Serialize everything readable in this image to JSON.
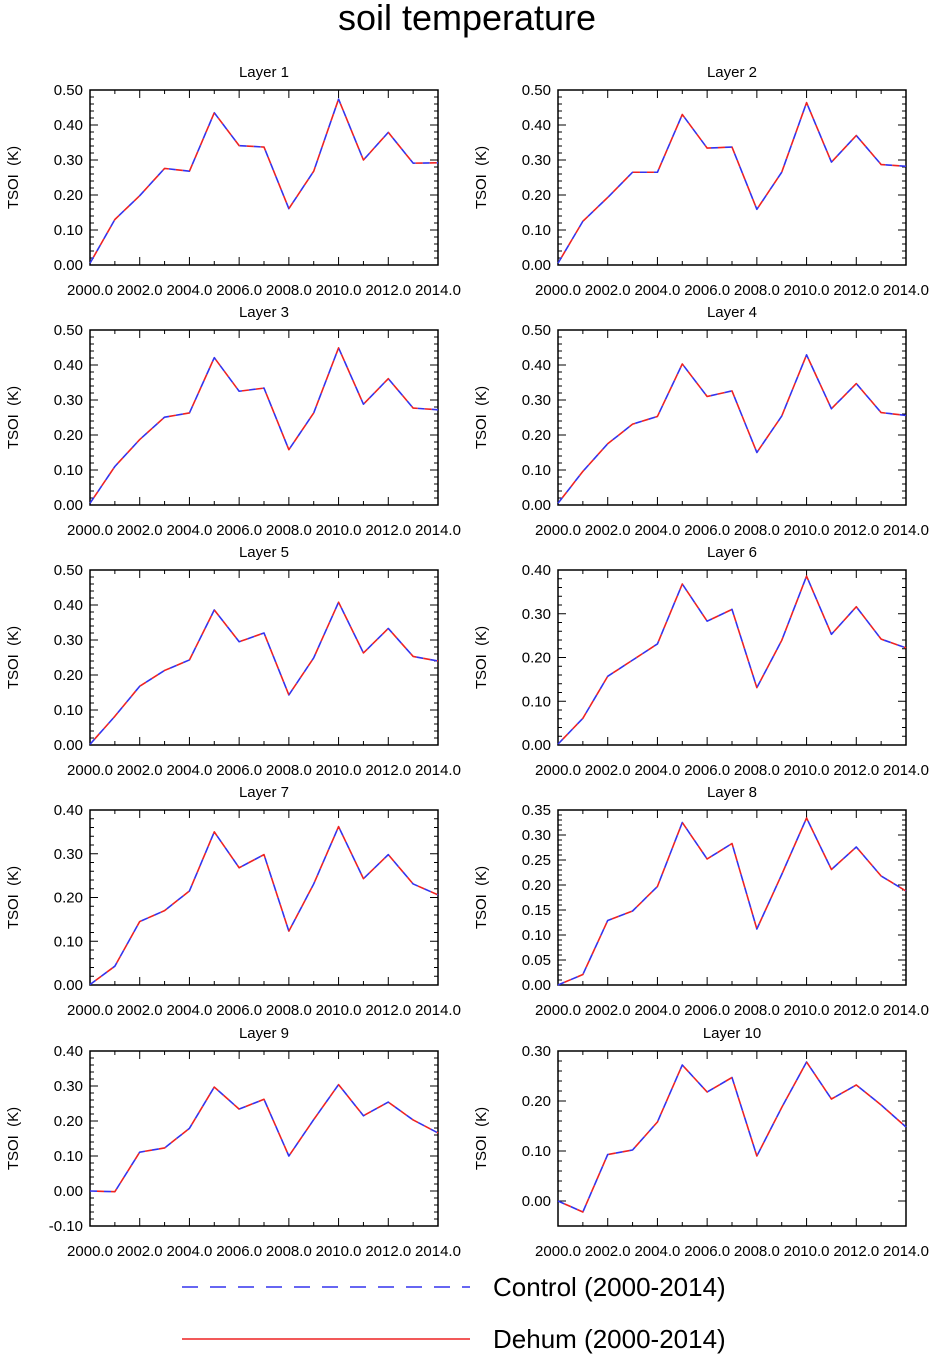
{
  "title": "soil temperature",
  "colors": {
    "control": "#3333ee",
    "dehum": "#ee2222",
    "axis": "#000000"
  },
  "legend": {
    "control_label": "Control (2000-2014)",
    "dehum_label": "Dehum (2000-2014)"
  },
  "chart_data": [
    {
      "type": "line",
      "title": "Layer 1",
      "ylabel": "TSOI  (K)",
      "x": [
        2000,
        2001,
        2002,
        2003,
        2004,
        2005,
        2006,
        2007,
        2008,
        2009,
        2010,
        2011,
        2012,
        2013,
        2014
      ],
      "xlim": [
        2000,
        2014
      ],
      "ylim": [
        0.0,
        0.5
      ],
      "xticks": [
        2000,
        2002,
        2004,
        2006,
        2008,
        2010,
        2012,
        2014
      ],
      "xtick_labels": [
        "2000.0",
        "2002.0",
        "2004.0",
        "2006.0",
        "2008.0",
        "2010.0",
        "2012.0",
        "2014.0"
      ],
      "yticks": [
        0,
        0.1,
        0.2,
        0.3,
        0.4,
        0.5
      ],
      "ytick_labels": [
        "0.00",
        "0.10",
        "0.20",
        "0.30",
        "0.40",
        "0.50"
      ],
      "series": [
        {
          "name": "Control (2000-2014)",
          "values": [
            0.005,
            0.13,
            0.198,
            0.276,
            0.268,
            0.435,
            0.341,
            0.337,
            0.161,
            0.268,
            0.474,
            0.3,
            0.379,
            0.291,
            0.292
          ]
        },
        {
          "name": "Dehum (2000-2014)",
          "values": [
            0.005,
            0.13,
            0.198,
            0.276,
            0.268,
            0.435,
            0.341,
            0.337,
            0.161,
            0.268,
            0.474,
            0.3,
            0.379,
            0.291,
            0.292
          ]
        }
      ]
    },
    {
      "type": "line",
      "title": "Layer 2",
      "ylabel": "TSOI  (K)",
      "x": [
        2000,
        2001,
        2002,
        2003,
        2004,
        2005,
        2006,
        2007,
        2008,
        2009,
        2010,
        2011,
        2012,
        2013,
        2014
      ],
      "xlim": [
        2000,
        2014
      ],
      "ylim": [
        0.0,
        0.5
      ],
      "xticks": [
        2000,
        2002,
        2004,
        2006,
        2008,
        2010,
        2012,
        2014
      ],
      "xtick_labels": [
        "2000.0",
        "2002.0",
        "2004.0",
        "2006.0",
        "2008.0",
        "2010.0",
        "2012.0",
        "2014.0"
      ],
      "yticks": [
        0,
        0.1,
        0.2,
        0.3,
        0.4,
        0.5
      ],
      "ytick_labels": [
        "0.00",
        "0.10",
        "0.20",
        "0.30",
        "0.40",
        "0.50"
      ],
      "series": [
        {
          "name": "Control (2000-2014)",
          "values": [
            0.005,
            0.125,
            0.193,
            0.265,
            0.265,
            0.43,
            0.334,
            0.337,
            0.159,
            0.265,
            0.464,
            0.294,
            0.37,
            0.287,
            0.282
          ]
        },
        {
          "name": "Dehum (2000-2014)",
          "values": [
            0.005,
            0.125,
            0.193,
            0.265,
            0.265,
            0.43,
            0.334,
            0.337,
            0.159,
            0.265,
            0.464,
            0.294,
            0.37,
            0.287,
            0.282
          ]
        }
      ]
    },
    {
      "type": "line",
      "title": "Layer 3",
      "ylabel": "TSOI  (K)",
      "x": [
        2000,
        2001,
        2002,
        2003,
        2004,
        2005,
        2006,
        2007,
        2008,
        2009,
        2010,
        2011,
        2012,
        2013,
        2014
      ],
      "xlim": [
        2000,
        2014
      ],
      "ylim": [
        0.0,
        0.5
      ],
      "xticks": [
        2000,
        2002,
        2004,
        2006,
        2008,
        2010,
        2012,
        2014
      ],
      "xtick_labels": [
        "2000.0",
        "2002.0",
        "2004.0",
        "2006.0",
        "2008.0",
        "2010.0",
        "2012.0",
        "2014.0"
      ],
      "yticks": [
        0,
        0.1,
        0.2,
        0.3,
        0.4,
        0.5
      ],
      "ytick_labels": [
        "0.00",
        "0.10",
        "0.20",
        "0.30",
        "0.40",
        "0.50"
      ],
      "series": [
        {
          "name": "Control (2000-2014)",
          "values": [
            0.005,
            0.11,
            0.187,
            0.251,
            0.263,
            0.421,
            0.325,
            0.334,
            0.158,
            0.263,
            0.449,
            0.288,
            0.361,
            0.277,
            0.272
          ]
        },
        {
          "name": "Dehum (2000-2014)",
          "values": [
            0.005,
            0.11,
            0.187,
            0.251,
            0.263,
            0.421,
            0.325,
            0.334,
            0.158,
            0.263,
            0.449,
            0.288,
            0.361,
            0.277,
            0.272
          ]
        }
      ]
    },
    {
      "type": "line",
      "title": "Layer 4",
      "ylabel": "TSOI  (K)",
      "x": [
        2000,
        2001,
        2002,
        2003,
        2004,
        2005,
        2006,
        2007,
        2008,
        2009,
        2010,
        2011,
        2012,
        2013,
        2014
      ],
      "xlim": [
        2000,
        2014
      ],
      "ylim": [
        0.0,
        0.5
      ],
      "xticks": [
        2000,
        2002,
        2004,
        2006,
        2008,
        2010,
        2012,
        2014
      ],
      "xtick_labels": [
        "2000.0",
        "2002.0",
        "2004.0",
        "2006.0",
        "2008.0",
        "2010.0",
        "2012.0",
        "2014.0"
      ],
      "yticks": [
        0,
        0.1,
        0.2,
        0.3,
        0.4,
        0.5
      ],
      "ytick_labels": [
        "0.00",
        "0.10",
        "0.20",
        "0.30",
        "0.40",
        "0.50"
      ],
      "series": [
        {
          "name": "Control (2000-2014)",
          "values": [
            0.005,
            0.096,
            0.175,
            0.231,
            0.253,
            0.403,
            0.31,
            0.326,
            0.15,
            0.254,
            0.429,
            0.275,
            0.347,
            0.264,
            0.256
          ]
        },
        {
          "name": "Dehum (2000-2014)",
          "values": [
            0.005,
            0.096,
            0.175,
            0.231,
            0.253,
            0.403,
            0.31,
            0.326,
            0.15,
            0.254,
            0.429,
            0.275,
            0.347,
            0.264,
            0.256
          ]
        }
      ]
    },
    {
      "type": "line",
      "title": "Layer 5",
      "ylabel": "TSOI  (K)",
      "x": [
        2000,
        2001,
        2002,
        2003,
        2004,
        2005,
        2006,
        2007,
        2008,
        2009,
        2010,
        2011,
        2012,
        2013,
        2014
      ],
      "xlim": [
        2000,
        2014
      ],
      "ylim": [
        0.0,
        0.5
      ],
      "xticks": [
        2000,
        2002,
        2004,
        2006,
        2008,
        2010,
        2012,
        2014
      ],
      "xtick_labels": [
        "2000.0",
        "2002.0",
        "2004.0",
        "2006.0",
        "2008.0",
        "2010.0",
        "2012.0",
        "2014.0"
      ],
      "yticks": [
        0,
        0.1,
        0.2,
        0.3,
        0.4,
        0.5
      ],
      "ytick_labels": [
        "0.00",
        "0.10",
        "0.20",
        "0.30",
        "0.40",
        "0.50"
      ],
      "series": [
        {
          "name": "Control (2000-2014)",
          "values": [
            0.002,
            0.082,
            0.168,
            0.213,
            0.243,
            0.386,
            0.295,
            0.32,
            0.143,
            0.249,
            0.408,
            0.263,
            0.333,
            0.253,
            0.24
          ]
        },
        {
          "name": "Dehum (2000-2014)",
          "values": [
            0.002,
            0.082,
            0.168,
            0.213,
            0.243,
            0.386,
            0.295,
            0.32,
            0.143,
            0.249,
            0.408,
            0.263,
            0.333,
            0.253,
            0.24
          ]
        }
      ]
    },
    {
      "type": "line",
      "title": "Layer 6",
      "ylabel": "TSOI  (K)",
      "x": [
        2000,
        2001,
        2002,
        2003,
        2004,
        2005,
        2006,
        2007,
        2008,
        2009,
        2010,
        2011,
        2012,
        2013,
        2014
      ],
      "xlim": [
        2000,
        2014
      ],
      "ylim": [
        0.0,
        0.4
      ],
      "xticks": [
        2000,
        2002,
        2004,
        2006,
        2008,
        2010,
        2012,
        2014
      ],
      "xtick_labels": [
        "2000.0",
        "2002.0",
        "2004.0",
        "2006.0",
        "2008.0",
        "2010.0",
        "2012.0",
        "2014.0"
      ],
      "yticks": [
        0,
        0.1,
        0.2,
        0.3,
        0.4
      ],
      "ytick_labels": [
        "0.00",
        "0.10",
        "0.20",
        "0.30",
        "0.40"
      ],
      "series": [
        {
          "name": "Control (2000-2014)",
          "values": [
            0.002,
            0.061,
            0.157,
            0.194,
            0.231,
            0.368,
            0.283,
            0.31,
            0.131,
            0.239,
            0.386,
            0.253,
            0.316,
            0.242,
            0.222
          ]
        },
        {
          "name": "Dehum (2000-2014)",
          "values": [
            0.002,
            0.061,
            0.157,
            0.194,
            0.231,
            0.368,
            0.283,
            0.31,
            0.131,
            0.239,
            0.386,
            0.253,
            0.316,
            0.242,
            0.222
          ]
        }
      ]
    },
    {
      "type": "line",
      "title": "Layer 7",
      "ylabel": "TSOI  (K)",
      "x": [
        2000,
        2001,
        2002,
        2003,
        2004,
        2005,
        2006,
        2007,
        2008,
        2009,
        2010,
        2011,
        2012,
        2013,
        2014
      ],
      "xlim": [
        2000,
        2014
      ],
      "ylim": [
        0.0,
        0.4
      ],
      "xticks": [
        2000,
        2002,
        2004,
        2006,
        2008,
        2010,
        2012,
        2014
      ],
      "xtick_labels": [
        "2000.0",
        "2002.0",
        "2004.0",
        "2006.0",
        "2008.0",
        "2010.0",
        "2012.0",
        "2014.0"
      ],
      "yticks": [
        0,
        0.1,
        0.2,
        0.3,
        0.4
      ],
      "ytick_labels": [
        "0.00",
        "0.10",
        "0.20",
        "0.30",
        "0.40"
      ],
      "series": [
        {
          "name": "Control (2000-2014)",
          "values": [
            0.001,
            0.043,
            0.145,
            0.17,
            0.215,
            0.35,
            0.268,
            0.298,
            0.123,
            0.231,
            0.362,
            0.243,
            0.298,
            0.231,
            0.206
          ]
        },
        {
          "name": "Dehum (2000-2014)",
          "values": [
            0.001,
            0.043,
            0.145,
            0.17,
            0.215,
            0.35,
            0.268,
            0.298,
            0.123,
            0.231,
            0.362,
            0.243,
            0.298,
            0.231,
            0.206
          ]
        }
      ]
    },
    {
      "type": "line",
      "title": "Layer 8",
      "ylabel": "TSOI  (K)",
      "x": [
        2000,
        2001,
        2002,
        2003,
        2004,
        2005,
        2006,
        2007,
        2008,
        2009,
        2010,
        2011,
        2012,
        2013,
        2014
      ],
      "xlim": [
        2000,
        2014
      ],
      "ylim": [
        0.0,
        0.35
      ],
      "xticks": [
        2000,
        2002,
        2004,
        2006,
        2008,
        2010,
        2012,
        2014
      ],
      "xtick_labels": [
        "2000.0",
        "2002.0",
        "2004.0",
        "2006.0",
        "2008.0",
        "2010.0",
        "2012.0",
        "2014.0"
      ],
      "yticks": [
        0,
        0.05,
        0.1,
        0.15,
        0.2,
        0.25,
        0.3,
        0.35
      ],
      "ytick_labels": [
        "0.00",
        "0.05",
        "0.10",
        "0.15",
        "0.20",
        "0.25",
        "0.30",
        "0.35"
      ],
      "series": [
        {
          "name": "Control (2000-2014)",
          "values": [
            0.0,
            0.021,
            0.129,
            0.148,
            0.197,
            0.325,
            0.252,
            0.283,
            0.112,
            0.221,
            0.334,
            0.231,
            0.276,
            0.218,
            0.188
          ]
        },
        {
          "name": "Dehum (2000-2014)",
          "values": [
            0.0,
            0.021,
            0.129,
            0.148,
            0.197,
            0.325,
            0.252,
            0.283,
            0.112,
            0.221,
            0.334,
            0.231,
            0.276,
            0.218,
            0.188
          ]
        }
      ]
    },
    {
      "type": "line",
      "title": "Layer 9",
      "ylabel": "TSOI  (K)",
      "x": [
        2000,
        2001,
        2002,
        2003,
        2004,
        2005,
        2006,
        2007,
        2008,
        2009,
        2010,
        2011,
        2012,
        2013,
        2014
      ],
      "xlim": [
        2000,
        2014
      ],
      "ylim": [
        -0.1,
        0.4
      ],
      "xticks": [
        2000,
        2002,
        2004,
        2006,
        2008,
        2010,
        2012,
        2014
      ],
      "xtick_labels": [
        "2000.0",
        "2002.0",
        "2004.0",
        "2006.0",
        "2008.0",
        "2010.0",
        "2012.0",
        "2014.0"
      ],
      "yticks": [
        -0.1,
        0,
        0.1,
        0.2,
        0.3,
        0.4
      ],
      "ytick_labels": [
        "-0.10",
        "0.00",
        "0.10",
        "0.20",
        "0.30",
        "0.40"
      ],
      "series": [
        {
          "name": "Control (2000-2014)",
          "values": [
            0.0,
            -0.002,
            0.111,
            0.123,
            0.179,
            0.297,
            0.234,
            0.262,
            0.1,
            0.204,
            0.304,
            0.215,
            0.254,
            0.203,
            0.166
          ]
        },
        {
          "name": "Dehum (2000-2014)",
          "values": [
            0.0,
            -0.002,
            0.111,
            0.123,
            0.179,
            0.297,
            0.234,
            0.262,
            0.1,
            0.204,
            0.304,
            0.215,
            0.254,
            0.203,
            0.166
          ]
        }
      ]
    },
    {
      "type": "line",
      "title": "Layer 10",
      "ylabel": "TSOI  (K)",
      "x": [
        2000,
        2001,
        2002,
        2003,
        2004,
        2005,
        2006,
        2007,
        2008,
        2009,
        2010,
        2011,
        2012,
        2013,
        2014
      ],
      "xlim": [
        2000,
        2014
      ],
      "ylim": [
        -0.05,
        0.3
      ],
      "xticks": [
        2000,
        2002,
        2004,
        2006,
        2008,
        2010,
        2012,
        2014
      ],
      "xtick_labels": [
        "2000.0",
        "2002.0",
        "2004.0",
        "2006.0",
        "2008.0",
        "2010.0",
        "2012.0",
        "2014.0"
      ],
      "yticks": [
        0,
        0.1,
        0.2,
        0.3
      ],
      "ytick_labels": [
        "0.00",
        "0.10",
        "0.20",
        "0.30"
      ],
      "series": [
        {
          "name": "Control (2000-2014)",
          "values": [
            0.0,
            -0.022,
            0.093,
            0.102,
            0.158,
            0.272,
            0.218,
            0.247,
            0.09,
            0.187,
            0.278,
            0.204,
            0.232,
            0.192,
            0.148
          ]
        },
        {
          "name": "Dehum (2000-2014)",
          "values": [
            0.0,
            -0.022,
            0.093,
            0.102,
            0.158,
            0.272,
            0.218,
            0.247,
            0.09,
            0.187,
            0.278,
            0.204,
            0.232,
            0.192,
            0.148
          ]
        }
      ]
    }
  ]
}
